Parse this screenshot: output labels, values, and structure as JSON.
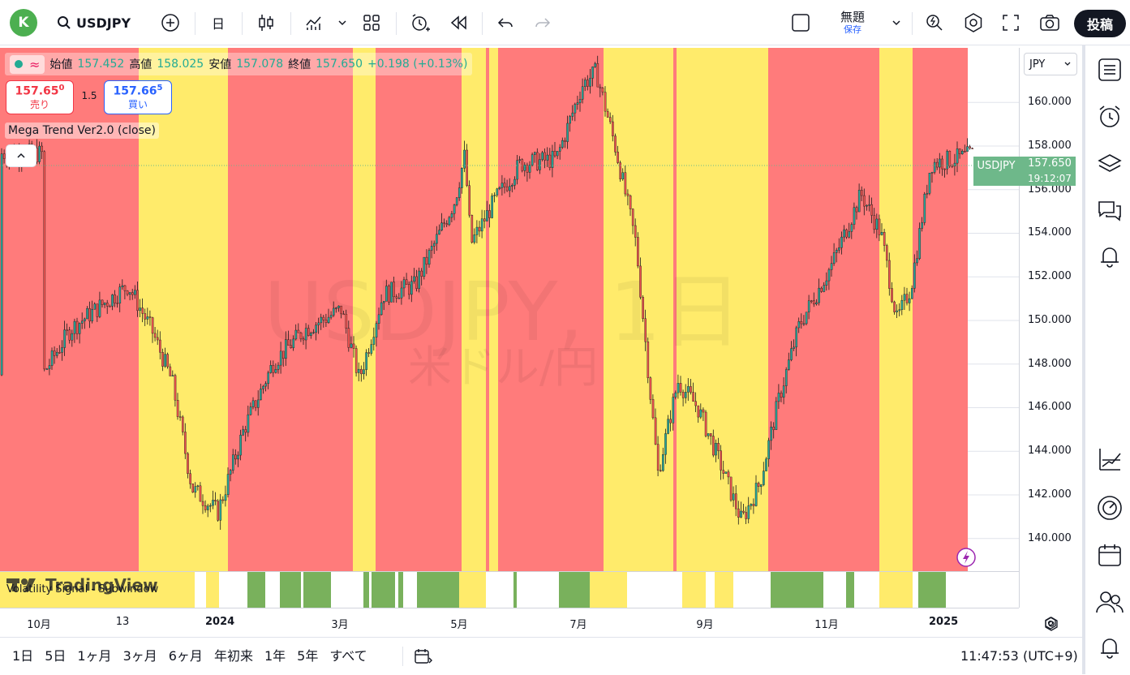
{
  "header": {
    "avatar_letter": "K",
    "symbol": "USDJPY",
    "interval": "日",
    "layout_name": "無題",
    "save_label": "保存",
    "post_label": "投稿"
  },
  "legend": {
    "open_label": "始値",
    "open": "157.452",
    "high_label": "高値",
    "high": "158.025",
    "low_label": "安値",
    "low": "157.078",
    "close_label": "終値",
    "close": "157.650",
    "change": "+0.198 (+0.13%)"
  },
  "trade": {
    "sell_price": "157.65",
    "sell_sup": "0",
    "sell_label": "売り",
    "spread": "1.5",
    "buy_price": "157.66",
    "buy_sup": "5",
    "buy_label": "買い"
  },
  "indicator": {
    "name": "Mega Trend Ver2.0 (close)"
  },
  "subwindow": {
    "name": "Volatility Signal - Subwindow",
    "logo_text": "TradingView"
  },
  "watermark": {
    "symbol": "USDJPY, 1日",
    "desc": "米ドル/円"
  },
  "price_scale": {
    "currency": "JPY",
    "ticks": [
      "160.000",
      "158.000",
      "156.000",
      "154.000",
      "152.000",
      "150.000",
      "148.000",
      "146.000",
      "144.000",
      "142.000",
      "140.000"
    ],
    "current_symbol": "USDJPY",
    "current_price": "157.650",
    "countdown": "19:12:07"
  },
  "time_axis": {
    "labels": [
      "10月",
      "13",
      "2024",
      "3月",
      "5月",
      "7月",
      "9月",
      "11月",
      "2025"
    ]
  },
  "bottom": {
    "ranges": [
      "1日",
      "5日",
      "1ヶ月",
      "3ヶ月",
      "6ヶ月",
      "年初来",
      "1年",
      "5年",
      "すべて"
    ],
    "clock": "11:47:53 (UTC+9)"
  },
  "colors": {
    "bull": "#26a69a",
    "bear": "#ef5350",
    "zone_red": "#ff7b7b",
    "zone_yellow": "#ffeb6b",
    "signal_green": "#79b15c",
    "price_tag": "#6eb88a"
  },
  "chart_data": {
    "type": "candlestick",
    "symbol": "USDJPY",
    "interval": "1D",
    "ylim": [
      138.5,
      162.5
    ],
    "x_labels": [
      "10月",
      "13",
      "2024",
      "3月",
      "5月",
      "7月",
      "9月",
      "11月",
      "2025"
    ],
    "close_path": [
      {
        "d": "2023-10-01",
        "c": 147.5
      },
      {
        "d": "2023-10-15",
        "c": 149.6
      },
      {
        "d": "2023-11-01",
        "c": 150.8
      },
      {
        "d": "2023-11-13",
        "c": 151.6
      },
      {
        "d": "2023-11-25",
        "c": 149.5
      },
      {
        "d": "2023-12-05",
        "c": 147.2
      },
      {
        "d": "2023-12-15",
        "c": 142.3
      },
      {
        "d": "2023-12-28",
        "c": 141.2
      },
      {
        "d": "2024-01-10",
        "c": 145.0
      },
      {
        "d": "2024-01-25",
        "c": 148.1
      },
      {
        "d": "2024-02-10",
        "c": 149.6
      },
      {
        "d": "2024-02-28",
        "c": 150.5
      },
      {
        "d": "2024-03-08",
        "c": 147.3
      },
      {
        "d": "2024-03-20",
        "c": 151.2
      },
      {
        "d": "2024-04-05",
        "c": 151.6
      },
      {
        "d": "2024-04-25",
        "c": 155.5
      },
      {
        "d": "2024-04-30",
        "c": 157.6
      },
      {
        "d": "2024-05-03",
        "c": 153.5
      },
      {
        "d": "2024-05-15",
        "c": 155.5
      },
      {
        "d": "2024-05-28",
        "c": 157.2
      },
      {
        "d": "2024-06-15",
        "c": 157.4
      },
      {
        "d": "2024-06-28",
        "c": 160.8
      },
      {
        "d": "2024-07-05",
        "c": 161.4
      },
      {
        "d": "2024-07-15",
        "c": 157.8
      },
      {
        "d": "2024-07-25",
        "c": 153.5
      },
      {
        "d": "2024-08-05",
        "c": 143.0
      },
      {
        "d": "2024-08-15",
        "c": 147.2
      },
      {
        "d": "2024-08-25",
        "c": 146.0
      },
      {
        "d": "2024-09-05",
        "c": 143.5
      },
      {
        "d": "2024-09-16",
        "c": 140.8
      },
      {
        "d": "2024-09-25",
        "c": 142.5
      },
      {
        "d": "2024-10-05",
        "c": 146.5
      },
      {
        "d": "2024-10-15",
        "c": 149.8
      },
      {
        "d": "2024-10-31",
        "c": 152.5
      },
      {
        "d": "2024-11-15",
        "c": 155.8
      },
      {
        "d": "2024-11-25",
        "c": 154.0
      },
      {
        "d": "2024-12-03",
        "c": 150.0
      },
      {
        "d": "2024-12-10",
        "c": 151.5
      },
      {
        "d": "2024-12-20",
        "c": 157.2
      },
      {
        "d": "2025-01-06",
        "c": 157.5
      },
      {
        "d": "2025-01-10",
        "c": 157.65
      }
    ]
  }
}
